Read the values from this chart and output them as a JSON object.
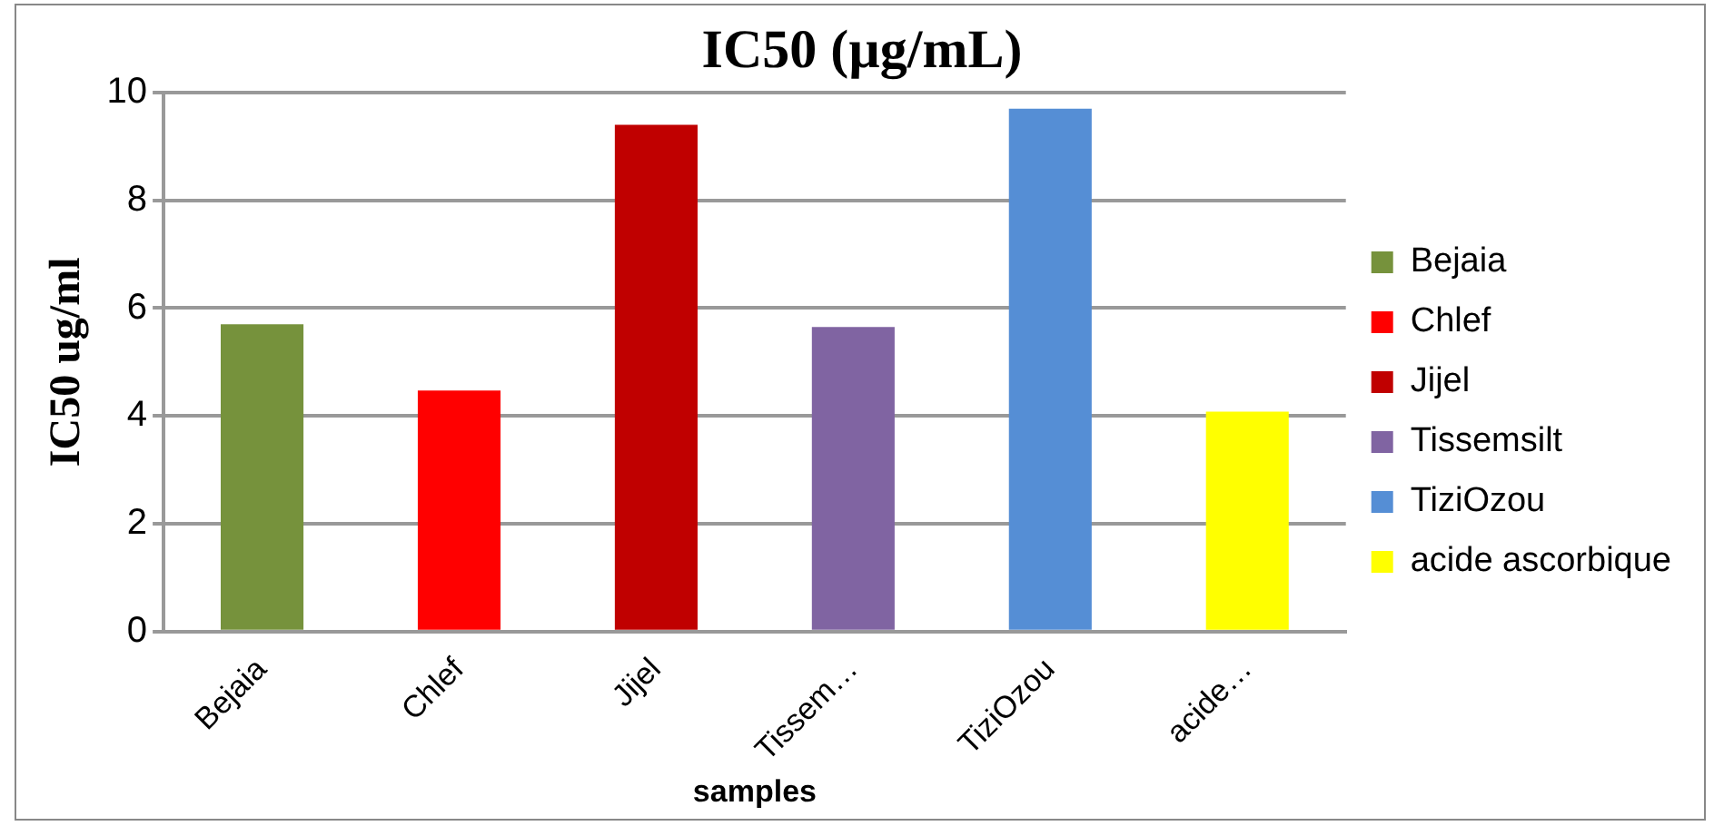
{
  "chart_data": {
    "type": "bar",
    "title": "IC50 (µg/mL)",
    "xlabel": "samples",
    "ylabel": "IC50 ug/ml",
    "categories": [
      "Bejaia",
      "Chlef",
      "Jijel",
      "Tissem…",
      "TiziOzou",
      "acide…"
    ],
    "ylim": [
      0,
      10
    ],
    "yticks": [
      0,
      2,
      4,
      6,
      8,
      10
    ],
    "grid": "y",
    "legend": "right",
    "series": [
      {
        "name": "Bejaia",
        "color": "#76923c",
        "values": [
          5.7,
          null,
          null,
          null,
          null,
          null
        ]
      },
      {
        "name": "Chlef",
        "color": "#ff0000",
        "values": [
          null,
          4.47,
          null,
          null,
          null,
          null
        ]
      },
      {
        "name": "Jijel",
        "color": "#c00000",
        "values": [
          null,
          null,
          9.4,
          null,
          null,
          null
        ]
      },
      {
        "name": "Tissemsilt",
        "color": "#8064a2",
        "values": [
          null,
          null,
          null,
          5.65,
          null,
          null
        ]
      },
      {
        "name": "TiziOzou",
        "color": "#558ed5",
        "values": [
          null,
          null,
          null,
          null,
          9.7,
          null
        ]
      },
      {
        "name": "acide ascorbique",
        "color": "#ffff00",
        "values": [
          null,
          null,
          null,
          null,
          null,
          4.08
        ]
      }
    ]
  }
}
